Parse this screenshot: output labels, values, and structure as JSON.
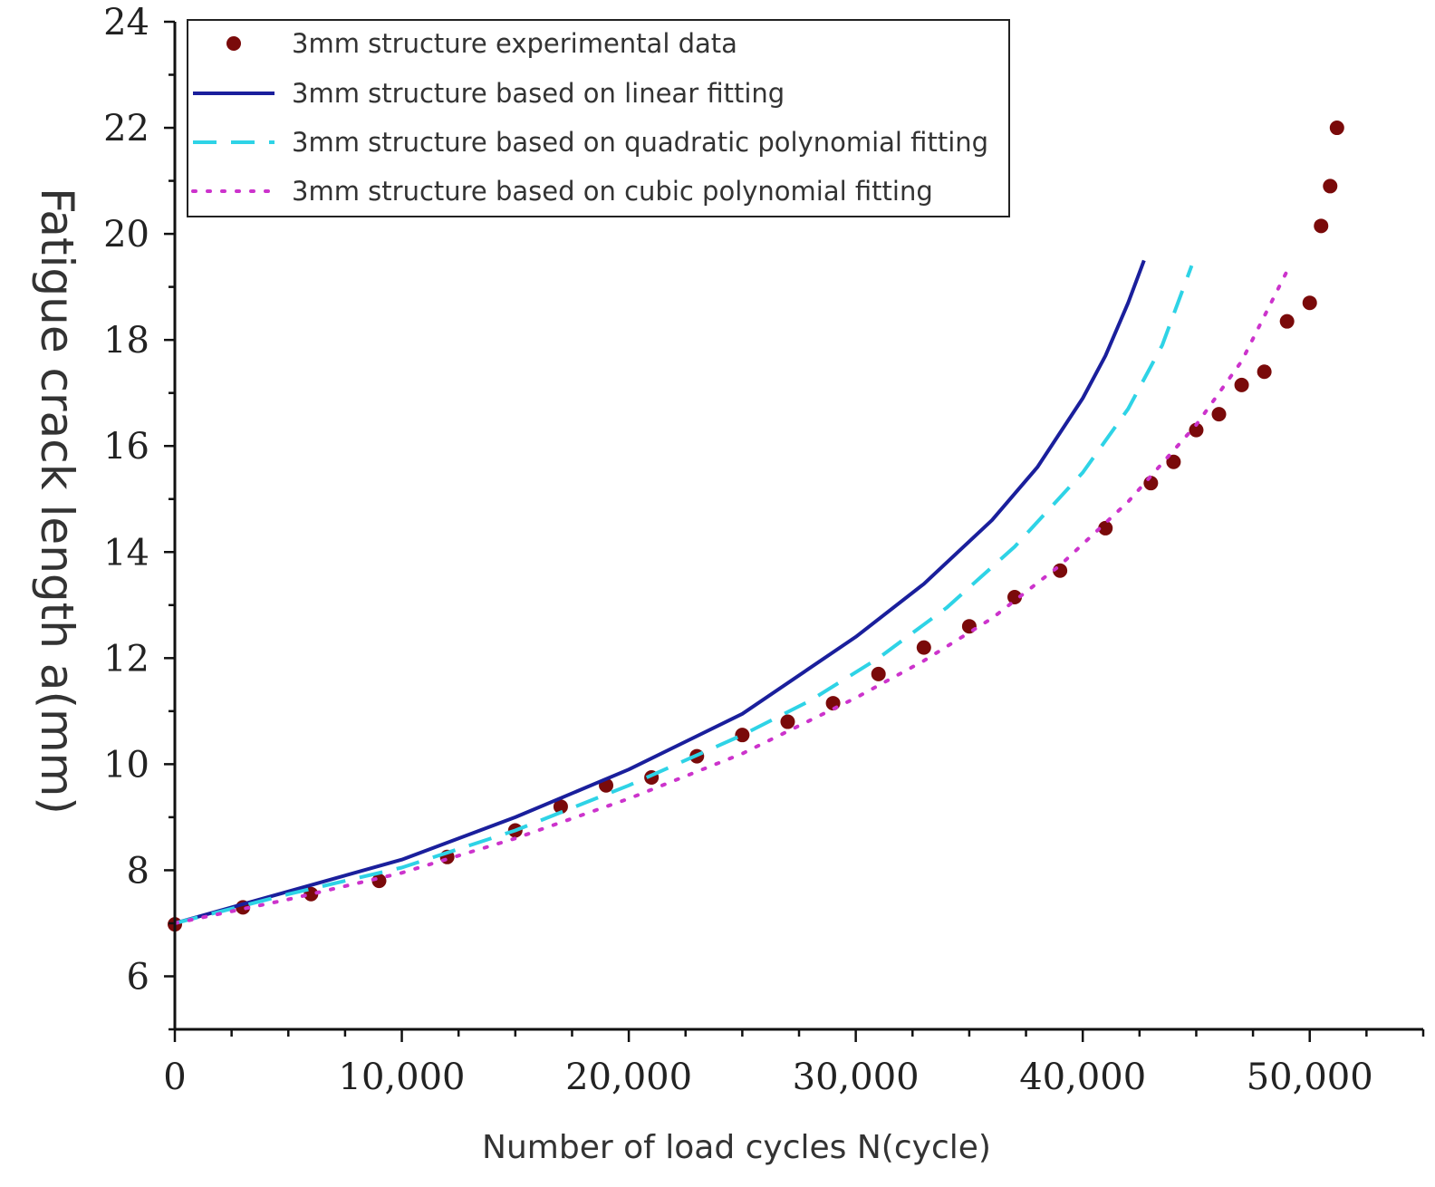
{
  "chart_data": {
    "type": "scatter",
    "title": "",
    "xlabel": "Number of load cycles N(cycle)",
    "ylabel": "Fatigue crack length a(mm)",
    "xlim": [
      0,
      55000
    ],
    "ylim": [
      5,
      24
    ],
    "xticks": [
      0,
      10000,
      20000,
      30000,
      40000,
      50000
    ],
    "xtick_labels": [
      "0",
      "10,000",
      "20,000",
      "30,000",
      "40,000",
      "50,000"
    ],
    "yticks": [
      6,
      8,
      10,
      12,
      14,
      16,
      18,
      20,
      22,
      24
    ],
    "ytick_labels": [
      "6",
      "8",
      "10",
      "12",
      "14",
      "16",
      "18",
      "20",
      "22",
      "24"
    ],
    "legend_position": "top-left",
    "grid": false,
    "colors": {
      "experimental": "#7a0a0a",
      "linear": "#1a1f9c",
      "quadratic": "#2ed3e6",
      "cubic": "#cc33cc",
      "axis": "#111111"
    },
    "series": [
      {
        "name": "3mm structure experimental data",
        "style": "markers",
        "x": [
          0,
          3000,
          6000,
          9000,
          12000,
          15000,
          17000,
          19000,
          21000,
          23000,
          25000,
          27000,
          29000,
          31000,
          33000,
          35000,
          37000,
          39000,
          41000,
          43000,
          44000,
          45000,
          46000,
          47000,
          48000,
          49000,
          50000,
          50500,
          50900,
          51200
        ],
        "y": [
          6.98,
          7.3,
          7.55,
          7.8,
          8.25,
          8.75,
          9.2,
          9.6,
          9.75,
          10.15,
          10.55,
          10.8,
          11.15,
          11.7,
          12.2,
          12.6,
          13.15,
          13.65,
          14.45,
          15.3,
          15.7,
          16.3,
          16.6,
          17.15,
          17.4,
          18.35,
          18.7,
          20.15,
          20.9,
          22.0
        ]
      },
      {
        "name": "3mm structure based on linear fitting",
        "style": "solid",
        "x": [
          0,
          5000,
          10000,
          15000,
          20000,
          25000,
          30000,
          33000,
          36000,
          38000,
          40000,
          41000,
          42000,
          42700
        ],
        "y": [
          7.0,
          7.6,
          8.2,
          9.0,
          9.9,
          10.95,
          12.4,
          13.4,
          14.6,
          15.6,
          16.9,
          17.7,
          18.7,
          19.5
        ]
      },
      {
        "name": "3mm structure based on quadratic polynomial fitting",
        "style": "dashed",
        "x": [
          0,
          5000,
          10000,
          15000,
          20000,
          25000,
          28000,
          31000,
          34000,
          37000,
          40000,
          42000,
          43500,
          44800
        ],
        "y": [
          7.0,
          7.55,
          8.05,
          8.75,
          9.6,
          10.55,
          11.2,
          12.0,
          12.95,
          14.1,
          15.5,
          16.7,
          17.9,
          19.4
        ]
      },
      {
        "name": "3mm structure based on cubic polynomial fitting",
        "style": "dotted",
        "x": [
          0,
          5000,
          10000,
          15000,
          20000,
          25000,
          30000,
          33000,
          36000,
          39000,
          42000,
          45000,
          47000,
          49000
        ],
        "y": [
          7.0,
          7.45,
          7.95,
          8.6,
          9.35,
          10.2,
          11.25,
          11.95,
          12.75,
          13.75,
          14.95,
          16.4,
          17.6,
          19.3
        ]
      }
    ]
  }
}
